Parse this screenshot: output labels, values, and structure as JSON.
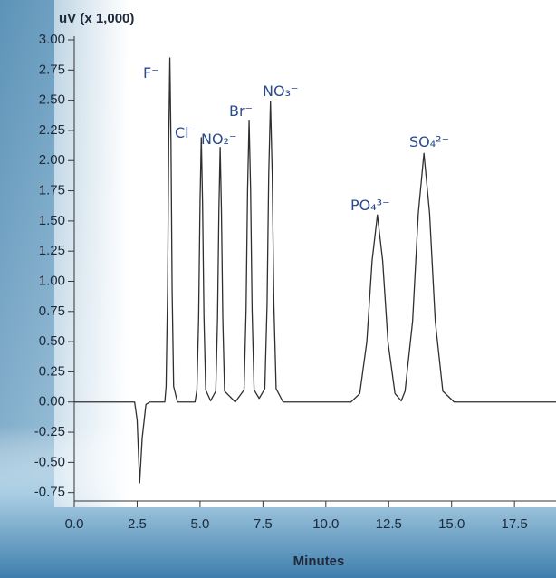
{
  "chart_data": {
    "type": "line",
    "y_label": "uV (x 1,000)",
    "x_label": "Minutes",
    "color": "#2f2f2f",
    "x": [
      0,
      2.4,
      2.5,
      2.6,
      2.7,
      2.85,
      3.0,
      3.6,
      3.65,
      3.71,
      3.755,
      3.8,
      3.845,
      3.89,
      3.95,
      4.1,
      4.8,
      4.875,
      4.945,
      5.0,
      5.05,
      5.1,
      5.155,
      5.225,
      5.42,
      5.625,
      5.695,
      5.75,
      5.8,
      5.85,
      5.905,
      5.975,
      6.4,
      6.75,
      6.83,
      6.89,
      6.95,
      7.01,
      7.07,
      7.15,
      7.35,
      7.575,
      7.665,
      7.73,
      7.8,
      7.87,
      7.935,
      8.025,
      8.3,
      11.0,
      11.35,
      11.63,
      11.84,
      12.05,
      12.26,
      12.47,
      12.75,
      13.0,
      13.15,
      13.45,
      13.675,
      13.9,
      14.125,
      14.35,
      14.65,
      15.1,
      19.15
    ],
    "values": [
      0,
      0,
      -0.15,
      -0.67,
      -0.3,
      -0.02,
      0,
      0,
      0.13,
      0.93,
      2.15,
      2.85,
      2.15,
      0.93,
      0.13,
      0,
      0,
      0.1,
      0.71,
      1.65,
      2.19,
      1.65,
      0.71,
      0.1,
      0.01,
      0.09,
      0.69,
      1.59,
      2.11,
      1.59,
      0.69,
      0.09,
      0,
      0.1,
      0.76,
      1.76,
      2.33,
      1.76,
      0.76,
      0.1,
      0.03,
      0.11,
      0.81,
      1.88,
      2.49,
      1.88,
      0.81,
      0.11,
      0,
      0,
      0.07,
      0.5,
      1.17,
      1.55,
      1.17,
      0.5,
      0.07,
      0.01,
      0.09,
      0.67,
      1.56,
      2.06,
      1.56,
      0.67,
      0.09,
      0,
      0
    ],
    "annotations": [
      "F⁻",
      "Cl⁻",
      "NO₂⁻",
      "Br⁻",
      "NO₃⁻",
      "PO₄³⁻",
      "SO₄²⁻"
    ],
    "xlim": [
      0,
      19.15
    ],
    "ylim": [
      -0.82,
      3.03
    ],
    "xticks": [
      {
        "value": 0,
        "label": "0.0"
      },
      2.5,
      {
        "value": 5,
        "label": "5.0"
      },
      7.5,
      {
        "value": 10,
        "label": "10.0"
      },
      12.5,
      {
        "value": 15,
        "label": "15.0"
      },
      17.5
    ],
    "yticks": [
      {
        "value": 3,
        "label": "3.00"
      },
      2.75,
      {
        "value": 2.5,
        "label": "2.50"
      },
      2.25,
      {
        "value": 2,
        "label": "2.00"
      },
      1.75,
      {
        "value": 1.5,
        "label": "1.50"
      },
      1.25,
      {
        "value": 1,
        "label": "1.00"
      },
      0.75,
      {
        "value": 0.5,
        "label": "0.50"
      },
      0.25,
      {
        "value": 0,
        "label": "0.00"
      },
      -0.25,
      {
        "value": -0.5,
        "label": "-0.50"
      },
      -0.75
    ]
  }
}
